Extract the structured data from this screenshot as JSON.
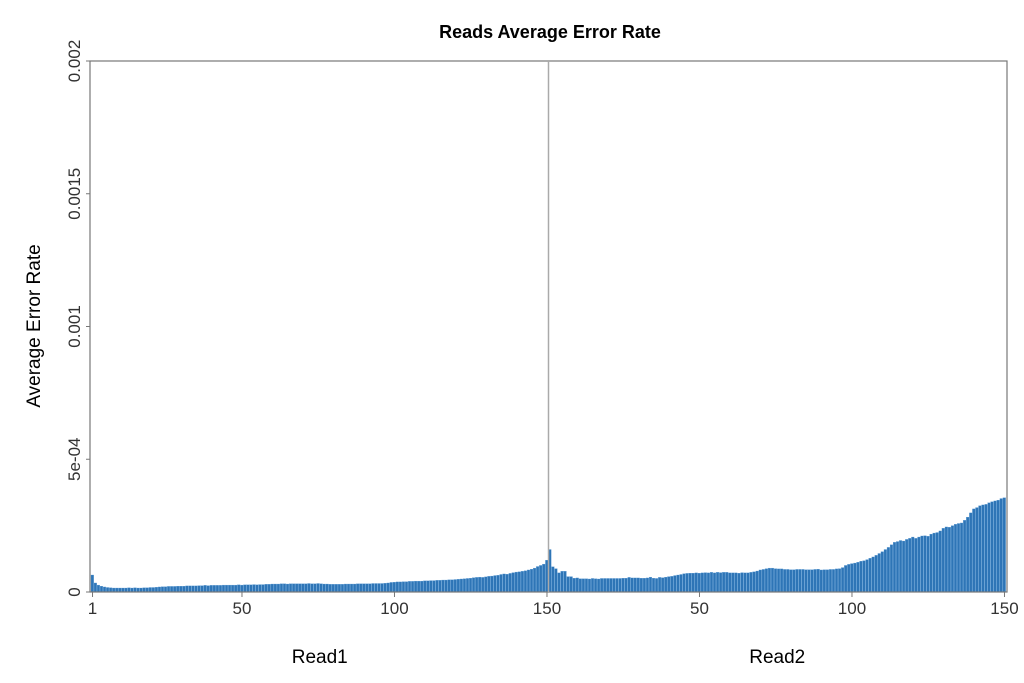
{
  "chart_data": {
    "type": "bar",
    "title": "Reads Average Error Rate",
    "ylabel": "Average Error Rate",
    "ylim": [
      0,
      0.002
    ],
    "yticks": [
      "0",
      "5e-04",
      "0.001",
      "0.0015",
      "0.002"
    ],
    "ytick_values": [
      0,
      0.0005,
      0.001,
      0.0015,
      0.002
    ],
    "grid": false,
    "bar_color": "#2e75b6",
    "divider_color": "#aaaaaa",
    "groups": [
      {
        "name": "Read1",
        "xticks": [
          "1",
          "50",
          "100",
          "150"
        ],
        "xtick_values": [
          1,
          50,
          100,
          150
        ],
        "values": [
          6.4e-05,
          3.4e-05,
          2.6e-05,
          2.2e-05,
          1.9e-05,
          1.7e-05,
          1.6e-05,
          1.5e-05,
          1.5e-05,
          1.5e-05,
          1.5e-05,
          1.5e-05,
          1.6e-05,
          1.5e-05,
          1.6e-05,
          1.5e-05,
          1.5e-05,
          1.6e-05,
          1.6e-05,
          1.7e-05,
          1.7e-05,
          1.8e-05,
          1.9e-05,
          2e-05,
          2e-05,
          2.1e-05,
          2.1e-05,
          2.1e-05,
          2.2e-05,
          2.2e-05,
          2.2e-05,
          2.3e-05,
          2.3e-05,
          2.3e-05,
          2.3e-05,
          2.4e-05,
          2.4e-05,
          2.5e-05,
          2.4e-05,
          2.5e-05,
          2.5e-05,
          2.5e-05,
          2.5e-05,
          2.6e-05,
          2.6e-05,
          2.6e-05,
          2.6e-05,
          2.6e-05,
          2.7e-05,
          2.6e-05,
          2.7e-05,
          2.7e-05,
          2.7e-05,
          2.8e-05,
          2.7e-05,
          2.8e-05,
          2.8e-05,
          2.9e-05,
          2.9e-05,
          3e-05,
          3e-05,
          3e-05,
          3.1e-05,
          3.1e-05,
          3e-05,
          3.1e-05,
          3.1e-05,
          3.1e-05,
          3.1e-05,
          3.1e-05,
          3.1e-05,
          3.2e-05,
          3.1e-05,
          3.1e-05,
          3.2e-05,
          3.1e-05,
          3e-05,
          3e-05,
          2.9e-05,
          2.9e-05,
          2.9e-05,
          2.9e-05,
          2.9e-05,
          3e-05,
          3e-05,
          3e-05,
          3e-05,
          3.1e-05,
          3.1e-05,
          3.1e-05,
          3.1e-05,
          3.1e-05,
          3.2e-05,
          3.2e-05,
          3.2e-05,
          3.2e-05,
          3.3e-05,
          3.4e-05,
          3.6e-05,
          3.7e-05,
          3.8e-05,
          3.8e-05,
          3.9e-05,
          3.9e-05,
          4e-05,
          4e-05,
          4.1e-05,
          4.1e-05,
          4.1e-05,
          4.2e-05,
          4.2e-05,
          4.3e-05,
          4.3e-05,
          4.4e-05,
          4.4e-05,
          4.5e-05,
          4.5e-05,
          4.6e-05,
          4.6e-05,
          4.7e-05,
          4.8e-05,
          4.9e-05,
          5e-05,
          5.1e-05,
          5.2e-05,
          5.4e-05,
          5.5e-05,
          5.6e-05,
          5.5e-05,
          5.7e-05,
          5.9e-05,
          6e-05,
          6.2e-05,
          6.3e-05,
          6.6e-05,
          6.8e-05,
          6.7e-05,
          7e-05,
          7.3e-05,
          7.5e-05,
          7.6e-05,
          7.8e-05,
          8e-05,
          8.3e-05,
          8.6e-05,
          9e-05,
          9.6e-05,
          0.0001,
          0.000105,
          0.00012
        ]
      },
      {
        "name": "Read2",
        "xticks": [
          "50",
          "100",
          "150"
        ],
        "xtick_values": [
          50,
          100,
          150
        ],
        "values": [
          0.00016,
          9.5e-05,
          8.8e-05,
          7.2e-05,
          7.8e-05,
          7.8e-05,
          5.8e-05,
          5.8e-05,
          5.2e-05,
          5.3e-05,
          5e-05,
          5e-05,
          5e-05,
          4.9e-05,
          5.1e-05,
          5e-05,
          4.9e-05,
          5.1e-05,
          5.1e-05,
          5.1e-05,
          5.1e-05,
          5.1e-05,
          5.1e-05,
          5.1e-05,
          5.2e-05,
          5.2e-05,
          5.5e-05,
          5.3e-05,
          5.3e-05,
          5.3e-05,
          5.2e-05,
          5.2e-05,
          5.3e-05,
          5.6e-05,
          5.2e-05,
          5.1e-05,
          5.5e-05,
          5.4e-05,
          5.6e-05,
          5.8e-05,
          5.9e-05,
          6.2e-05,
          6.4e-05,
          6.6e-05,
          6.9e-05,
          7e-05,
          7.1e-05,
          7.1e-05,
          7.2e-05,
          7.1e-05,
          7.2e-05,
          7.3e-05,
          7.2e-05,
          7.4e-05,
          7.2e-05,
          7.4e-05,
          7.3e-05,
          7.4e-05,
          7.4e-05,
          7.2e-05,
          7.2e-05,
          7.2e-05,
          7.1e-05,
          7.3e-05,
          7.2e-05,
          7.2e-05,
          7.4e-05,
          7.6e-05,
          7.9e-05,
          8.3e-05,
          8.5e-05,
          8.8e-05,
          9e-05,
          9e-05,
          8.8e-05,
          8.7e-05,
          8.7e-05,
          8.5e-05,
          8.5e-05,
          8.4e-05,
          8.4e-05,
          8.5e-05,
          8.5e-05,
          8.5e-05,
          8.4e-05,
          8.4e-05,
          8.4e-05,
          8.5e-05,
          8.6e-05,
          8.3e-05,
          8.4e-05,
          8.4e-05,
          8.5e-05,
          8.5e-05,
          8.7e-05,
          8.8e-05,
          9.2e-05,
          0.0001,
          0.000104,
          0.000107,
          0.000109,
          0.000112,
          0.000116,
          0.000118,
          0.000122,
          0.000127,
          0.000132,
          0.000138,
          0.000145,
          0.000152,
          0.00016,
          0.000168,
          0.000178,
          0.000187,
          0.00019,
          0.000194,
          0.000192,
          0.000198,
          0.000202,
          0.000207,
          0.000202,
          0.000207,
          0.000211,
          0.000212,
          0.00021,
          0.000218,
          0.000222,
          0.000224,
          0.00023,
          0.00024,
          0.000245,
          0.000244,
          0.00025,
          0.000255,
          0.000258,
          0.00026,
          0.00027,
          0.000282,
          0.000298,
          0.000313,
          0.000318,
          0.000325,
          0.000328,
          0.00033,
          0.000336,
          0.00034,
          0.000343,
          0.000346,
          0.000352,
          0.000355
        ]
      }
    ]
  }
}
